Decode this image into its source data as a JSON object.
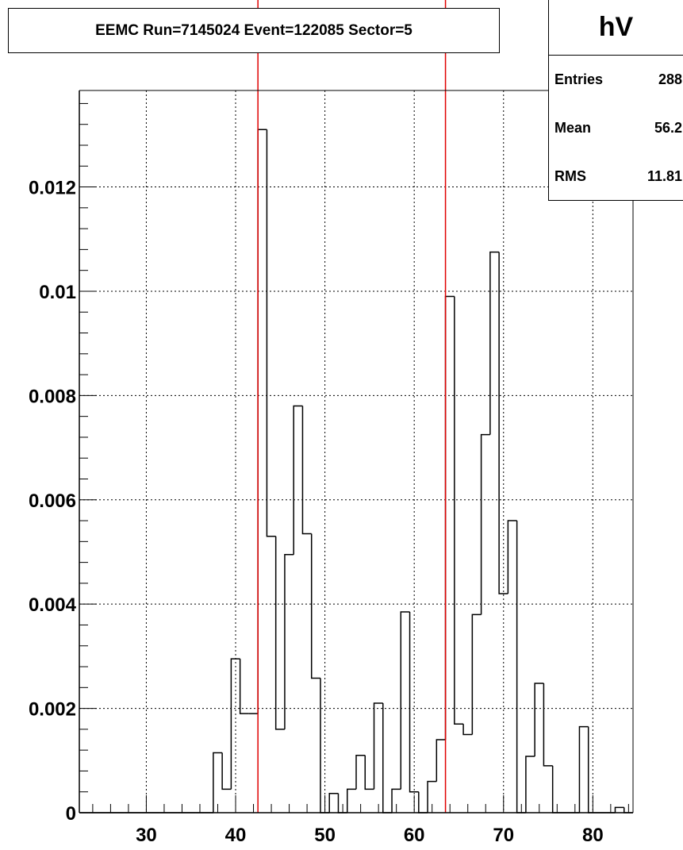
{
  "title": "EEMC Run=7145024 Event=122085 Sector=5",
  "stats": {
    "name": "hV",
    "rows": [
      {
        "label": "Entries",
        "value": "288"
      },
      {
        "label": "Mean",
        "value": "56.2"
      },
      {
        "label": "RMS",
        "value": "11.81"
      }
    ]
  },
  "chart_data": {
    "type": "histogram",
    "title": "EEMC Run=7145024 Event=122085 Sector=5",
    "xlabel": "",
    "ylabel": "",
    "xlim": [
      22.5,
      84.5
    ],
    "ylim": [
      0,
      0.01385
    ],
    "grid": true,
    "bin_width": 1,
    "x_ticks": [
      30,
      40,
      50,
      60,
      70,
      80
    ],
    "y_ticks": [
      0,
      0.002,
      0.004,
      0.006,
      0.008,
      0.01,
      0.012
    ],
    "x_tick_labels": [
      "30",
      "40",
      "50",
      "60",
      "70",
      "80"
    ],
    "y_tick_labels": [
      "0",
      "0.002",
      "0.004",
      "0.006",
      "0.008",
      "0.01",
      "0.012"
    ],
    "bin_low_edges": [
      22.5,
      23.5,
      24.5,
      25.5,
      26.5,
      27.5,
      28.5,
      29.5,
      30.5,
      31.5,
      32.5,
      33.5,
      34.5,
      35.5,
      36.5,
      37.5,
      38.5,
      39.5,
      40.5,
      41.5,
      42.5,
      43.5,
      44.5,
      45.5,
      46.5,
      47.5,
      48.5,
      49.5,
      50.5,
      51.5,
      52.5,
      53.5,
      54.5,
      55.5,
      56.5,
      57.5,
      58.5,
      59.5,
      60.5,
      61.5,
      62.5,
      63.5,
      64.5,
      65.5,
      66.5,
      67.5,
      68.5,
      69.5,
      70.5,
      71.5,
      72.5,
      73.5,
      74.5,
      75.5,
      76.5,
      77.5,
      78.5,
      79.5,
      80.5,
      81.5,
      82.5,
      83.5
    ],
    "values": [
      0,
      0,
      0,
      0,
      0,
      0,
      0,
      0,
      0,
      0,
      0,
      0,
      0,
      0,
      0,
      0.00115,
      0.00045,
      0.00295,
      0.0019,
      0.0019,
      0.0131,
      0.0053,
      0.0016,
      0.00495,
      0.0078,
      0.00535,
      0.00258,
      0,
      0.00037,
      0,
      0.00045,
      0.0011,
      0.00045,
      0.0021,
      0,
      0.00045,
      0.00385,
      0.0004,
      0,
      0.0006,
      0.0014,
      0.0099,
      0.0017,
      0.0015,
      0.0038,
      0.00725,
      0.01075,
      0.0042,
      0.0056,
      0,
      0.00108,
      0.00248,
      0.0009,
      0,
      0,
      0,
      0.00165,
      0,
      0,
      0,
      0.0001,
      0
    ],
    "vertical_lines": {
      "color": "#e00000",
      "x": [
        42.5,
        63.5
      ]
    }
  }
}
